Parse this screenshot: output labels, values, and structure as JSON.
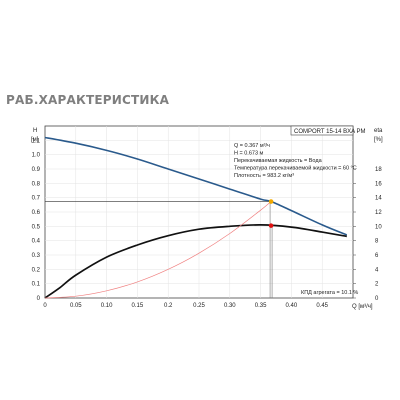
{
  "heading": "РАБ.ХАРАКТЕРИСТИКА",
  "chart_data": {
    "type": "line",
    "model": "COMPORT 15-14 BXA PM",
    "left_axis": {
      "label": "H",
      "unit": "[м]",
      "range": [
        0,
        1.2
      ],
      "ticks": [
        "0",
        "0.1",
        "0.2",
        "0.3",
        "0.4",
        "0.5",
        "0.6",
        "0.7",
        "0.8",
        "0.9",
        "1.0",
        "1.1"
      ]
    },
    "right_axis": {
      "label": "eta",
      "unit": "[%]",
      "range": [
        0,
        24
      ],
      "ticks": [
        "0",
        "2",
        "4",
        "6",
        "8",
        "10",
        "12",
        "14",
        "16",
        "18"
      ]
    },
    "x_axis": {
      "label": "Q [м³/ч]",
      "range": [
        0,
        0.5
      ],
      "ticks": [
        "0",
        "0.05",
        "0.10",
        "0.15",
        "0.2",
        "0.25",
        "0.30",
        "0.35",
        "0.40",
        "0.45"
      ]
    },
    "grid": true,
    "info": [
      "Q = 0.367 м³/ч",
      "H = 0.673 м",
      "Перекачиваемая жидкость = Вода",
      "Температура перекачиваемой жидкости = 60 °C",
      "Плотность = 983.2 кг/м³"
    ],
    "efficiency_label": "КПД агрегата = 10.1 %",
    "duty_point": {
      "q": 0.367,
      "h": 0.673,
      "eta": 10.1
    },
    "series": [
      {
        "axis": "left",
        "color": "#2a5a8c",
        "points": [
          [
            0,
            1.12
          ],
          [
            0.05,
            1.08
          ],
          [
            0.1,
            1.03
          ],
          [
            0.15,
            0.97
          ],
          [
            0.2,
            0.9
          ],
          [
            0.25,
            0.83
          ],
          [
            0.3,
            0.76
          ],
          [
            0.35,
            0.69
          ],
          [
            0.367,
            0.673
          ],
          [
            0.4,
            0.61
          ],
          [
            0.45,
            0.51
          ],
          [
            0.49,
            0.44
          ]
        ]
      },
      {
        "axis": "right",
        "color": "#111111",
        "points": [
          [
            0,
            0
          ],
          [
            0.025,
            1.5
          ],
          [
            0.05,
            3.2
          ],
          [
            0.1,
            5.7
          ],
          [
            0.15,
            7.4
          ],
          [
            0.2,
            8.7
          ],
          [
            0.25,
            9.6
          ],
          [
            0.3,
            10.0
          ],
          [
            0.35,
            10.2
          ],
          [
            0.4,
            9.9
          ],
          [
            0.45,
            9.2
          ],
          [
            0.49,
            8.6
          ]
        ]
      },
      {
        "axis": "left",
        "color": "#f08080",
        "points": [
          [
            0,
            0
          ],
          [
            0.05,
            0.0125
          ],
          [
            0.1,
            0.05
          ],
          [
            0.15,
            0.1125
          ],
          [
            0.2,
            0.2
          ],
          [
            0.25,
            0.3125
          ],
          [
            0.3,
            0.45
          ],
          [
            0.35,
            0.6125
          ],
          [
            0.367,
            0.673
          ]
        ]
      }
    ],
    "colors": {
      "guide": "#777777",
      "grid": "#e3e3e3",
      "duty_h": "#f0a800",
      "duty_eta": "#e01010"
    }
  }
}
